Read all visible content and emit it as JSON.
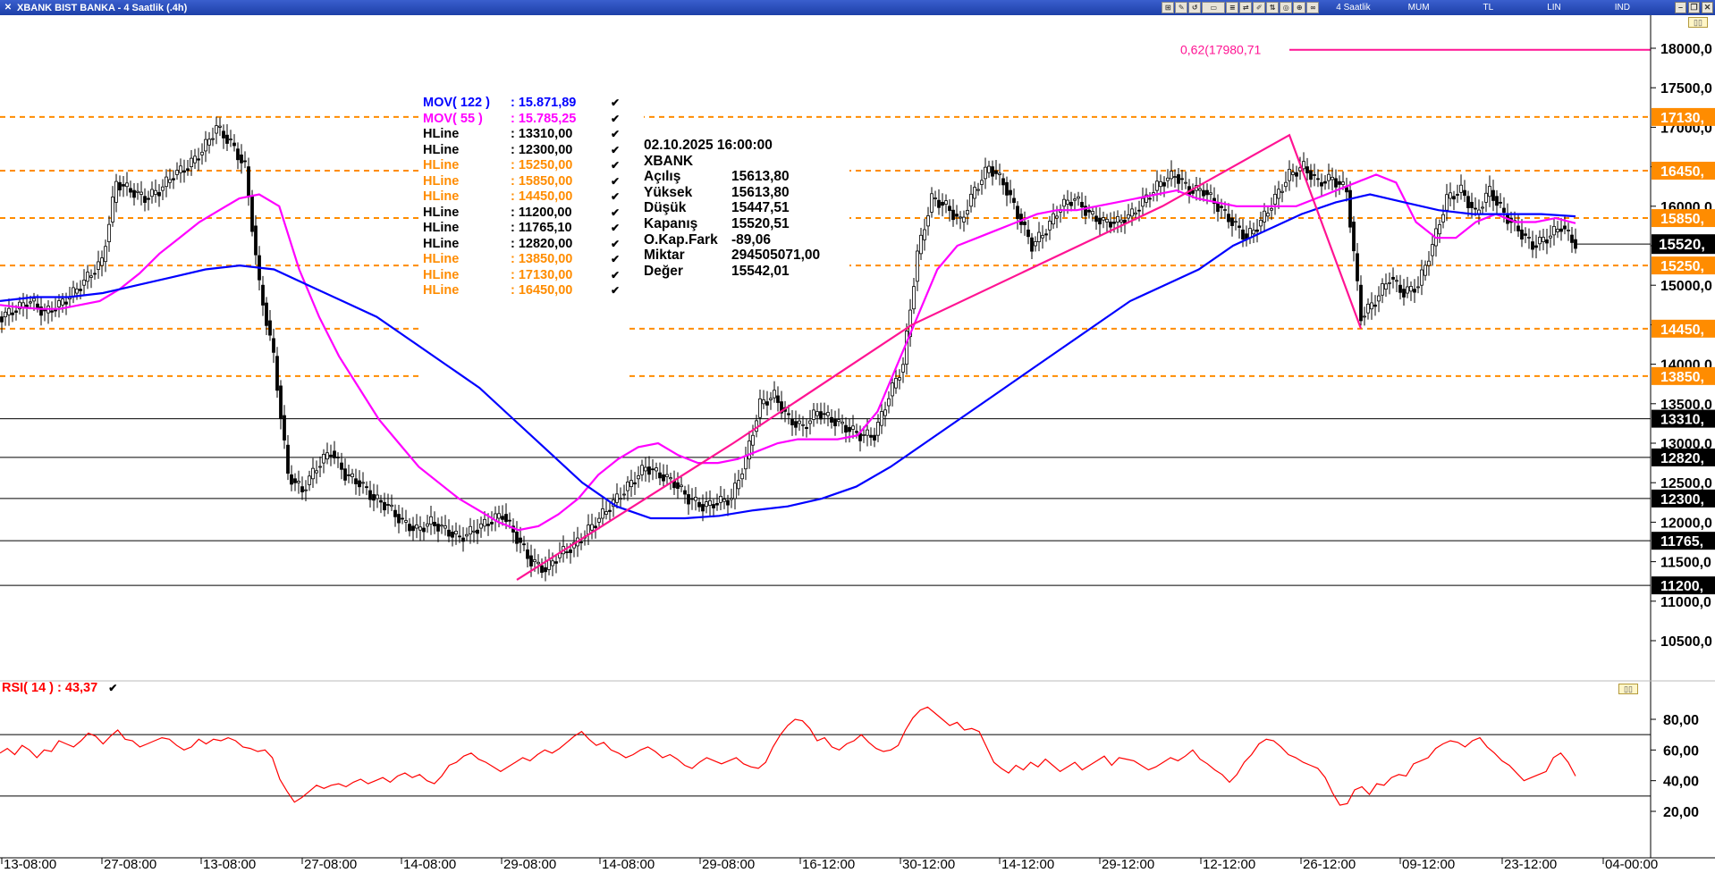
{
  "window": {
    "title": "XBANK BIST BANKA - 4 Saatlik (.4h)",
    "toolbar": {
      "period": "4 Saatlik",
      "style": "MUM",
      "currency": "TL",
      "scale": "LIN",
      "indicators": "IND"
    }
  },
  "legend": [
    {
      "name": "MOV( 122 )",
      "value": ": 15.871,89",
      "color": "#0000ff"
    },
    {
      "name": "MOV( 55 )",
      "value": ": 15.785,25",
      "color": "#ff00ff"
    },
    {
      "name": "HLine",
      "value": ": 13310,00",
      "color": "#000000"
    },
    {
      "name": "HLine",
      "value": ": 12300,00",
      "color": "#000000"
    },
    {
      "name": "HLine",
      "value": ": 15250,00",
      "color": "#ff8c00"
    },
    {
      "name": "HLine",
      "value": ": 15850,00",
      "color": "#ff8c00"
    },
    {
      "name": "HLine",
      "value": ": 14450,00",
      "color": "#ff8c00"
    },
    {
      "name": "HLine",
      "value": ": 11200,00",
      "color": "#000000"
    },
    {
      "name": "HLine",
      "value": ": 11765,10",
      "color": "#000000"
    },
    {
      "name": "HLine",
      "value": ": 12820,00",
      "color": "#000000"
    },
    {
      "name": "HLine",
      "value": ": 13850,00",
      "color": "#ff8c00"
    },
    {
      "name": "HLine",
      "value": ": 17130,00",
      "color": "#ff8c00"
    },
    {
      "name": "HLine",
      "value": ": 16450,00",
      "color": "#ff8c00"
    }
  ],
  "info": {
    "datetime": "02.10.2025  16:00:00",
    "symbol": "XBANK",
    "rows": [
      {
        "label": "Açılış",
        "value": "15613,80"
      },
      {
        "label": "Yüksek",
        "value": "15613,80"
      },
      {
        "label": "Düşük",
        "value": "15447,51"
      },
      {
        "label": "Kapanış",
        "value": "15520,51"
      },
      {
        "label": "O.Kap.Fark",
        "value": "-89,06"
      },
      {
        "label": "Miktar",
        "value": "294505071,00"
      },
      {
        "label": "Değer",
        "value": "15542,01"
      }
    ]
  },
  "fib_label": "0,62(17980,71",
  "rsi": {
    "label": "RSI( 14 )",
    "value": ":  43,37",
    "color": "#ff0000"
  },
  "colors": {
    "up": "#000000",
    "mov122": "#0000ff",
    "mov55": "#ff00ff",
    "hline_orange": "#ff8c00",
    "hline_black": "#000000",
    "trend": "#ff1493",
    "rsi": "#ff0000",
    "last_price_bg": "#000000"
  },
  "chart_data": [
    {
      "type": "line",
      "title": "XBANK BIST BANKA - 4 Saatlik (.4h)",
      "price_axis": {
        "ylim": [
          10000,
          18150
        ],
        "ticks": [
          10500,
          11000,
          11500,
          12000,
          12500,
          13000,
          13500,
          14000,
          14500,
          15000,
          15500,
          16000,
          16500,
          17000,
          17500,
          18000
        ],
        "tick_labels": [
          "10500,0",
          "11000,0",
          "11500,0",
          "12000,0",
          "12500,0",
          "13000,0",
          "13500,0",
          "14000,0",
          "14500,0",
          "15000,0",
          "15500,0",
          "16000,0",
          "16500,0",
          "17000,0",
          "17500,0",
          "18000,0"
        ]
      },
      "x_tick_labels": [
        "13-08:00",
        "27-08:00",
        "13-08:00",
        "27-08:00",
        "14-08:00",
        "29-08:00",
        "14-08:00",
        "29-08:00",
        "16-12:00",
        "30-12:00",
        "14-12:00",
        "29-12:00",
        "12-12:00",
        "26-12:00",
        "09-12:00",
        "23-12:00",
        "04-00:00"
      ],
      "hlines": [
        {
          "value": 13310,
          "style": "solid",
          "color": "#000000",
          "label": "13310,"
        },
        {
          "value": 12300,
          "style": "solid",
          "color": "#000000",
          "label": "12300,"
        },
        {
          "value": 11200,
          "style": "solid",
          "color": "#000000",
          "label": "11200,"
        },
        {
          "value": 11765.1,
          "style": "solid",
          "color": "#000000",
          "label": "11765,"
        },
        {
          "value": 12820,
          "style": "solid",
          "color": "#000000",
          "label": "12820,"
        },
        {
          "value": 15250,
          "style": "dashed",
          "color": "#ff8c00",
          "label": "15250,"
        },
        {
          "value": 15850,
          "style": "dashed",
          "color": "#ff8c00",
          "label": "15850,"
        },
        {
          "value": 14450,
          "style": "dashed",
          "color": "#ff8c00",
          "label": "14450,"
        },
        {
          "value": 13850,
          "style": "dashed",
          "color": "#ff8c00",
          "label": "13850,"
        },
        {
          "value": 17130,
          "style": "dashed",
          "color": "#ff8c00",
          "label": "17130,"
        },
        {
          "value": 16450,
          "style": "dashed",
          "color": "#ff8c00",
          "label": "16450,"
        }
      ],
      "last_price": {
        "value": 15520.51,
        "label": "15520,"
      },
      "fib_level": {
        "value": 17980.71
      },
      "series": [
        {
          "name": "Kapanış",
          "color": "#000000",
          "values": [
            14600,
            14700,
            14800,
            14650,
            14750,
            14900,
            15100,
            15300,
            16300,
            16200,
            16100,
            16200,
            16400,
            16500,
            16700,
            17000,
            16800,
            16500,
            15000,
            14100,
            12600,
            12400,
            12700,
            12900,
            12600,
            12500,
            12300,
            12200,
            12000,
            11900,
            12000,
            11900,
            11800,
            11900,
            12000,
            12100,
            11800,
            11500,
            11400,
            11600,
            11700,
            11900,
            12100,
            12300,
            12500,
            12700,
            12600,
            12500,
            12300,
            12200,
            12250,
            12300,
            12800,
            13500,
            13600,
            13300,
            13200,
            13400,
            13300,
            13200,
            13100,
            13100,
            13600,
            14000,
            15400,
            16100,
            16000,
            15800,
            16200,
            16500,
            16300,
            15900,
            15500,
            15700,
            16000,
            16100,
            15900,
            15800,
            15800,
            15900,
            16100,
            16300,
            16400,
            16200,
            16200,
            16000,
            15800,
            15600,
            15800,
            16100,
            16400,
            16500,
            16300,
            16350,
            16200,
            14600,
            14800,
            15100,
            14900,
            15000,
            15500,
            16100,
            16200,
            15900,
            16200,
            15900,
            15700,
            15500,
            15600,
            15750,
            15520
          ]
        },
        {
          "name": "MOV( 55 )",
          "color": "#ff00ff",
          "values": [
            14750,
            14720,
            14700,
            14700,
            14750,
            14800,
            14950,
            15150,
            15400,
            15600,
            15800,
            15950,
            16100,
            16150,
            16000,
            15200,
            14600,
            14100,
            13700,
            13300,
            13000,
            12700,
            12500,
            12300,
            12150,
            12000,
            11900,
            11950,
            12100,
            12300,
            12600,
            12800,
            12950,
            13000,
            12850,
            12750,
            12750,
            12800,
            12900,
            13000,
            13050,
            13050,
            13050,
            13100,
            13400,
            14000,
            14600,
            15200,
            15500,
            15600,
            15700,
            15800,
            15900,
            15950,
            15950,
            16000,
            16050,
            16100,
            16150,
            16200,
            16100,
            16050,
            16000,
            16000,
            16000,
            16000,
            16100,
            16200,
            16300,
            16400,
            16300,
            15800,
            15600,
            15600,
            15800,
            15900,
            15800,
            15800,
            15850,
            15785
          ]
        },
        {
          "name": "MOV( 122 )",
          "color": "#0000ff",
          "values": [
            14800,
            14850,
            14850,
            14900,
            15000,
            15100,
            15200,
            15250,
            15200,
            15000,
            14800,
            14600,
            14300,
            14000,
            13700,
            13300,
            12900,
            12500,
            12200,
            12050,
            12050,
            12080,
            12150,
            12200,
            12300,
            12450,
            12700,
            13000,
            13300,
            13600,
            13900,
            14200,
            14500,
            14800,
            15000,
            15200,
            15500,
            15700,
            15900,
            16050,
            16150,
            16050,
            15950,
            15900,
            15900,
            15900,
            15872
          ]
        },
        {
          "name": "Trend",
          "color": "#ff1493",
          "values": [
            11270,
            13000,
            14500,
            16000,
            16900,
            14450
          ]
        }
      ]
    },
    {
      "type": "line",
      "title": "RSI( 14 )",
      "ylim": [
        0,
        100
      ],
      "ticks": [
        20,
        40,
        60,
        80
      ],
      "tick_labels": [
        "20,00",
        "40,00",
        "60,00",
        "80,00"
      ],
      "hlines": [
        30,
        70
      ],
      "series": [
        {
          "name": "RSI( 14 )",
          "color": "#ff0000",
          "values": [
            58,
            61,
            57,
            63,
            60,
            55,
            60,
            59,
            66,
            64,
            62,
            66,
            71,
            69,
            64,
            69,
            73,
            67,
            66,
            62,
            64,
            66,
            68,
            67,
            63,
            60,
            62,
            67,
            64,
            67,
            66,
            68,
            66,
            62,
            61,
            59,
            60,
            55,
            41,
            33,
            26,
            29,
            33,
            37,
            35,
            37,
            38,
            36,
            39,
            41,
            38,
            40,
            42,
            39,
            43,
            45,
            42,
            44,
            40,
            38,
            43,
            50,
            52,
            56,
            58,
            54,
            52,
            49,
            46,
            49,
            52,
            55,
            53,
            57,
            60,
            58,
            61,
            65,
            69,
            72,
            67,
            63,
            65,
            60,
            58,
            55,
            57,
            60,
            62,
            59,
            55,
            57,
            54,
            50,
            48,
            52,
            55,
            53,
            51,
            53,
            55,
            51,
            49,
            48,
            52,
            62,
            70,
            76,
            80,
            79,
            74,
            66,
            68,
            62,
            60,
            64,
            66,
            70,
            65,
            61,
            59,
            60,
            63,
            73,
            81,
            86,
            88,
            84,
            80,
            76,
            78,
            73,
            74,
            72,
            62,
            52,
            48,
            45,
            50,
            47,
            52,
            49,
            54,
            50,
            46,
            49,
            52,
            47,
            50,
            53,
            56,
            50,
            55,
            54,
            53,
            50,
            47,
            49,
            52,
            55,
            53,
            56,
            60,
            54,
            51,
            47,
            44,
            39,
            44,
            52,
            57,
            64,
            67,
            66,
            62,
            57,
            55,
            52,
            50,
            48,
            42,
            32,
            24,
            25,
            34,
            36,
            31,
            38,
            37,
            42,
            44,
            43,
            51,
            53,
            55,
            61,
            64,
            66,
            65,
            62,
            66,
            68,
            62,
            58,
            53,
            50,
            45,
            40,
            42,
            44,
            46,
            55,
            58,
            52,
            43
          ]
        }
      ]
    }
  ]
}
